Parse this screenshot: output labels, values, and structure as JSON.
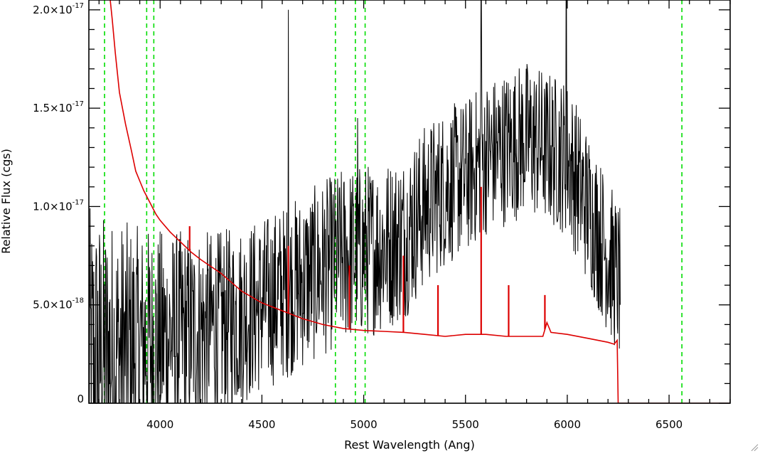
{
  "chart_data": {
    "type": "line",
    "title": "",
    "xlabel": "Rest Wavelength (Ang)",
    "ylabel": "Relative Flux (cgs)",
    "xlim": [
      3650,
      6800
    ],
    "ylim": [
      0,
      2.05e-17
    ],
    "x_ticks": [
      {
        "value": 4000,
        "label": "4000"
      },
      {
        "value": 4500,
        "label": "4500"
      },
      {
        "value": 5000,
        "label": "5000"
      },
      {
        "value": 5500,
        "label": "5500"
      },
      {
        "value": 6000,
        "label": "6000"
      },
      {
        "value": 6500,
        "label": "6500"
      }
    ],
    "y_ticks": [
      {
        "value": 0,
        "label": "0",
        "exp": ""
      },
      {
        "value": 5e-18,
        "label": "5.0×10",
        "exp": "-18"
      },
      {
        "value": 1e-17,
        "label": "1.0×10",
        "exp": "-17"
      },
      {
        "value": 1.5e-17,
        "label": "1.5×10",
        "exp": "-17"
      },
      {
        "value": 2e-17,
        "label": "2.0×10",
        "exp": "-17"
      }
    ],
    "x_minor_step": 100,
    "y_minor_step": 1e-18,
    "colors": {
      "spectrum": "#000000",
      "model": "#dd0000",
      "lines": "#00dd00"
    },
    "reference_lines": [
      3727,
      3934,
      3969,
      4861,
      4959,
      5007,
      6563
    ],
    "model": {
      "x": [
        3750,
        3765,
        3780,
        3800,
        3830,
        3860,
        3880,
        3900,
        3920,
        3950,
        3980,
        4000,
        4050,
        4100,
        4150,
        4200,
        4300,
        4400,
        4500,
        4600,
        4700,
        4800,
        4900,
        5000,
        5100,
        5200,
        5300,
        5400,
        5500,
        5600,
        5700,
        5800,
        5880,
        5900,
        5920,
        6000,
        6100,
        6200,
        6230,
        6245,
        6250,
        6260,
        6500,
        6800
      ],
      "y": [
        2.1e-17,
        1.95e-17,
        1.78e-17,
        1.58e-17,
        1.42e-17,
        1.28e-17,
        1.18e-17,
        1.13e-17,
        1.08e-17,
        1.02e-17,
        9.6e-18,
        9.3e-18,
        8.7e-18,
        8.2e-18,
        7.7e-18,
        7.3e-18,
        6.6e-18,
        5.7e-18,
        5.1e-18,
        4.7e-18,
        4.3e-18,
        4e-18,
        3.8e-18,
        3.7e-18,
        3.65e-18,
        3.6e-18,
        3.5e-18,
        3.4e-18,
        3.5e-18,
        3.5e-18,
        3.4e-18,
        3.4e-18,
        3.4e-18,
        4.1e-18,
        3.6e-18,
        3.5e-18,
        3.3e-18,
        3.1e-18,
        3e-18,
        3.2e-18,
        0,
        0,
        0,
        0
      ]
    },
    "model_spikes": [
      {
        "x": 4145,
        "y": 9e-18
      },
      {
        "x": 4630,
        "y": 8e-18
      },
      {
        "x": 4930,
        "y": 7e-18
      },
      {
        "x": 5195,
        "y": 7.5e-18
      },
      {
        "x": 5365,
        "y": 6e-18
      },
      {
        "x": 5577,
        "y": 1.1e-17
      },
      {
        "x": 5712,
        "y": 6e-18
      },
      {
        "x": 5890,
        "y": 5.5e-18
      }
    ],
    "spectrum": {
      "x_start": 3650,
      "x_end": 6260,
      "step": 2,
      "trend": {
        "x": [
          3650,
          3900,
          4100,
          4300,
          4500,
          4700,
          4900,
          5100,
          5200,
          5300,
          5400,
          5500,
          5600,
          5700,
          5800,
          5900,
          6000,
          6100,
          6200,
          6260
        ],
        "y": [
          2e-18,
          3e-18,
          3.5e-18,
          4e-18,
          5e-18,
          6.2e-18,
          7.5e-18,
          8e-18,
          8.5e-18,
          1e-17,
          1.1e-17,
          1.15e-17,
          1.25e-17,
          1.3e-17,
          1.35e-17,
          1.3e-17,
          1.25e-17,
          1e-17,
          7.5e-18,
          6e-18
        ]
      },
      "noise": {
        "x": [
          3650,
          3900,
          4200,
          4500,
          5000,
          5500,
          6000,
          6260
        ],
        "y": [
          8e-18,
          6e-18,
          5e-18,
          4.5e-18,
          4.5e-18,
          4e-18,
          4e-18,
          4e-18
        ]
      },
      "peaks": [
        {
          "x": 4630,
          "y": 2e-17
        },
        {
          "x": 4970,
          "y": 1.45e-17
        },
        {
          "x": 5577,
          "y": 2.05e-17
        },
        {
          "x": 5995,
          "y": 2.05e-17
        },
        {
          "x": 5890,
          "y": 1.55e-17
        }
      ]
    }
  }
}
